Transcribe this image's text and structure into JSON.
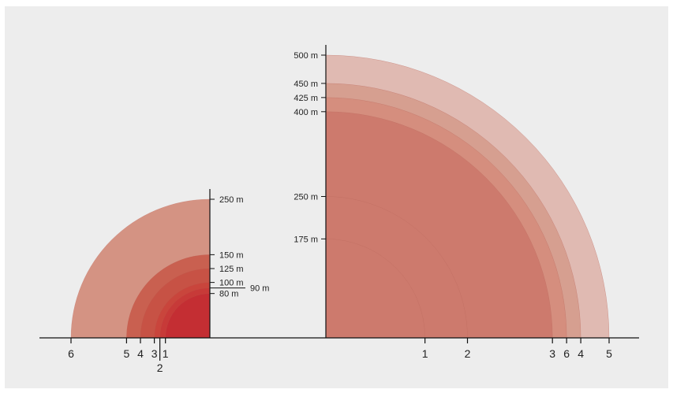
{
  "colors": {
    "background": "#ededed",
    "axis": "#111111",
    "fills": [
      "#d49383",
      "#c96050",
      "#c75245",
      "#c9453c",
      "#c73a38",
      "#c42e33",
      "#e0bab2",
      "#d69f90",
      "#d58e7e",
      "#cd7a6d",
      "#cd7a6d",
      "#cd7a6d"
    ]
  },
  "left_diagram": {
    "arcs": [
      {
        "radius_m": 250,
        "color": "#d49383"
      },
      {
        "radius_m": 150,
        "color": "#c96050"
      },
      {
        "radius_m": 125,
        "color": "#c75245"
      },
      {
        "radius_m": 100,
        "color": "#c9453c"
      },
      {
        "radius_m": 90,
        "color": "#c73a38"
      },
      {
        "radius_m": 80,
        "color": "#c42e33"
      }
    ],
    "ticks": [
      {
        "value": 250,
        "label": "250 m"
      },
      {
        "value": 150,
        "label": "150 m"
      },
      {
        "value": 125,
        "label": "125 m"
      },
      {
        "value": 100,
        "label": "100 m"
      },
      {
        "value": 90,
        "label": "90 m"
      },
      {
        "value": 80,
        "label": "80 m"
      }
    ],
    "numbers": [
      {
        "radius_m": 250,
        "label": "6"
      },
      {
        "radius_m": 150,
        "label": "5"
      },
      {
        "radius_m": 125,
        "label": "4"
      },
      {
        "radius_m": 100,
        "label": "3"
      },
      {
        "radius_m": 90,
        "label": "2"
      },
      {
        "radius_m": 80,
        "label": "1"
      }
    ]
  },
  "right_diagram": {
    "arcs": [
      {
        "radius_m": 500,
        "color": "#e0bab2"
      },
      {
        "radius_m": 450,
        "color": "#d69f90"
      },
      {
        "radius_m": 425,
        "color": "#d58e7e"
      },
      {
        "radius_m": 400,
        "color": "#cd7a6d"
      },
      {
        "radius_m": 250,
        "color": "#cd7a6d"
      },
      {
        "radius_m": 175,
        "color": "#cd7a6d"
      }
    ],
    "ticks": [
      {
        "value": 500,
        "label": "500 m"
      },
      {
        "value": 450,
        "label": "450 m"
      },
      {
        "value": 425,
        "label": "425 m"
      },
      {
        "value": 400,
        "label": "400 m"
      },
      {
        "value": 250,
        "label": "250 m"
      },
      {
        "value": 175,
        "label": "175 m"
      }
    ],
    "numbers": [
      {
        "radius_m": 175,
        "label": "1"
      },
      {
        "radius_m": 250,
        "label": "2"
      },
      {
        "radius_m": 400,
        "label": "3"
      },
      {
        "radius_m": 425,
        "label": "6"
      },
      {
        "radius_m": 450,
        "label": "4"
      },
      {
        "radius_m": 500,
        "label": "5"
      }
    ]
  }
}
